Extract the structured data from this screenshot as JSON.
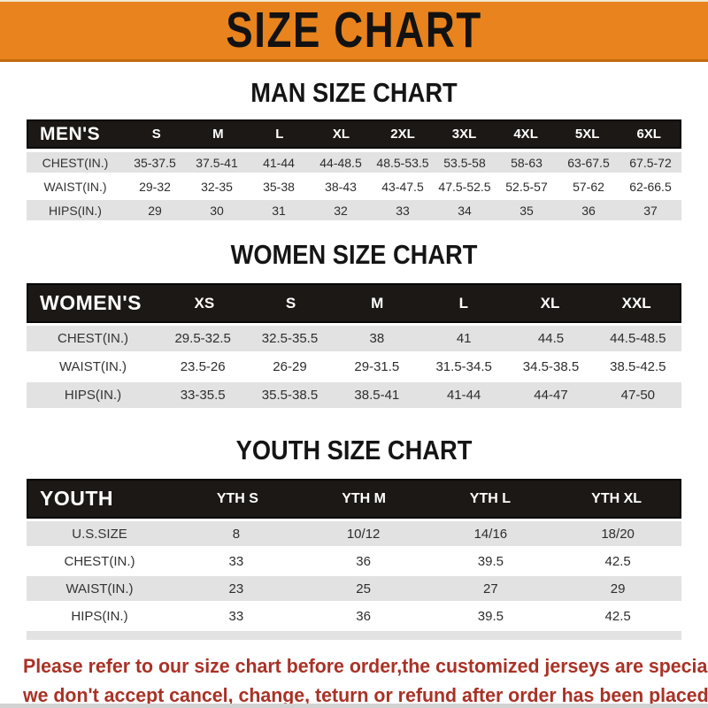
{
  "header": {
    "title": "SIZE CHART"
  },
  "colors": {
    "banner_bg": "#E8831D",
    "bar_bg": "#1C1815",
    "row_alt_bg": "#E2E2E2",
    "notice_red": "#A93226"
  },
  "sections": [
    {
      "title": "MAN SIZE CHART",
      "label": "MEN'S",
      "columns": [
        "S",
        "M",
        "L",
        "XL",
        "2XL",
        "3XL",
        "4XL",
        "5XL",
        "6XL"
      ],
      "rows": [
        {
          "label": "CHEST(IN.)",
          "values": [
            "35-37.5",
            "37.5-41",
            "41-44",
            "44-48.5",
            "48.5-53.5",
            "53.5-58",
            "58-63",
            "63-67.5",
            "67.5-72"
          ]
        },
        {
          "label": "WAIST(IN.)",
          "values": [
            "29-32",
            "32-35",
            "35-38",
            "38-43",
            "43-47.5",
            "47.5-52.5",
            "52.5-57",
            "57-62",
            "62-66.5"
          ]
        },
        {
          "label": "HIPS(IN.)",
          "values": [
            "29",
            "30",
            "31",
            "32",
            "33",
            "34",
            "35",
            "36",
            "37"
          ]
        }
      ]
    },
    {
      "title": "WOMEN SIZE CHART",
      "label": "WOMEN'S",
      "columns": [
        "XS",
        "S",
        "M",
        "L",
        "XL",
        "XXL"
      ],
      "rows": [
        {
          "label": "CHEST(IN.)",
          "values": [
            "29.5-32.5",
            "32.5-35.5",
            "38",
            "41",
            "44.5",
            "44.5-48.5"
          ]
        },
        {
          "label": "WAIST(IN.)",
          "values": [
            "23.5-26",
            "26-29",
            "29-31.5",
            "31.5-34.5",
            "34.5-38.5",
            "38.5-42.5"
          ]
        },
        {
          "label": "HIPS(IN.)",
          "values": [
            "33-35.5",
            "35.5-38.5",
            "38.5-41",
            "41-44",
            "44-47",
            "47-50"
          ]
        }
      ]
    },
    {
      "title": "YOUTH SIZE CHART",
      "label": "YOUTH",
      "columns": [
        "YTH S",
        "YTH M",
        "YTH L",
        "YTH XL"
      ],
      "rows": [
        {
          "label": "U.S.SIZE",
          "values": [
            "8",
            "10/12",
            "14/16",
            "18/20"
          ]
        },
        {
          "label": "CHEST(IN.)",
          "values": [
            "33",
            "36",
            "39.5",
            "42.5"
          ]
        },
        {
          "label": "WAIST(IN.)",
          "values": [
            "23",
            "25",
            "27",
            "29"
          ]
        },
        {
          "label": "HIPS(IN.)",
          "values": [
            "33",
            "36",
            "39.5",
            "42.5"
          ]
        }
      ]
    }
  ],
  "footer": {
    "line1": "Please refer to our size chart before order,the customized jerseys are special products,",
    "line2": "we don't accept cancel, change, teturn or refund after order has been placed!"
  }
}
